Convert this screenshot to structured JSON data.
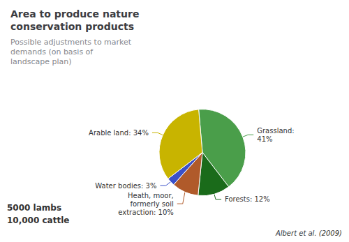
{
  "chart_data": {
    "type": "pie",
    "title": "Area to produce nature\nconservation products",
    "subtitle": "Possible adjustments to market\ndemands (on basis of\nlandscape plan)",
    "values": [
      41,
      12,
      10,
      3,
      34
    ],
    "value_labels": [
      "Grassland:\n41%",
      "Forests: 12%",
      "Heath, moor,\nformerly soil\nextraction: 10%",
      "Water bodies: 3%",
      "Arable land: 34%"
    ],
    "colors": [
      "#4a9e4a",
      "#1a6b1a",
      "#b05a2a",
      "#3a50c8",
      "#c8b400"
    ],
    "data_labels": true,
    "annotations": [
      "5000 lambs",
      "10,000 cattle",
      "Albert et al. (2009)"
    ]
  }
}
